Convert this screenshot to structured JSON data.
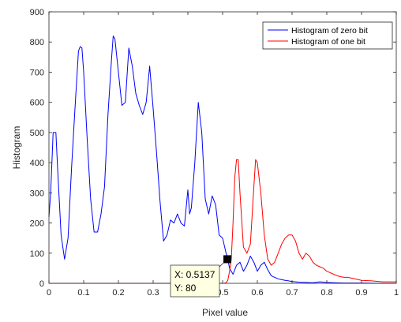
{
  "chart_data": {
    "type": "line",
    "xlabel": "Pixel value",
    "ylabel": "Histogram",
    "xlim": [
      0,
      1
    ],
    "ylim": [
      0,
      900
    ],
    "xticks": [
      0,
      0.1,
      0.2,
      0.3,
      0.4,
      0.5,
      0.6,
      0.7,
      0.8,
      0.9,
      1
    ],
    "xtick_labels": [
      "0",
      "0.1",
      "0.2",
      "0.3",
      "0.4",
      "0.5",
      "0.6",
      "0.7",
      "0.8",
      "0.9",
      "1"
    ],
    "yticks": [
      0,
      100,
      200,
      300,
      400,
      500,
      600,
      700,
      800,
      900
    ],
    "ytick_labels": [
      "0",
      "100",
      "200",
      "300",
      "400",
      "500",
      "600",
      "700",
      "800",
      "900"
    ],
    "grid": false,
    "legend_position": "top-right",
    "series": [
      {
        "name": "Histogram of zero bit",
        "color": "#0000ff",
        "x": [
          0,
          0.005,
          0.012,
          0.02,
          0.025,
          0.035,
          0.045,
          0.055,
          0.065,
          0.075,
          0.085,
          0.09,
          0.095,
          0.1,
          0.11,
          0.12,
          0.13,
          0.14,
          0.15,
          0.16,
          0.17,
          0.18,
          0.185,
          0.19,
          0.2,
          0.21,
          0.22,
          0.23,
          0.24,
          0.25,
          0.26,
          0.27,
          0.28,
          0.29,
          0.3,
          0.31,
          0.32,
          0.33,
          0.34,
          0.35,
          0.36,
          0.37,
          0.38,
          0.39,
          0.4,
          0.405,
          0.41,
          0.42,
          0.43,
          0.44,
          0.45,
          0.46,
          0.47,
          0.48,
          0.49,
          0.5,
          0.51,
          0.515,
          0.52,
          0.53,
          0.54,
          0.55,
          0.56,
          0.57,
          0.58,
          0.59,
          0.6,
          0.61,
          0.62,
          0.63,
          0.64,
          0.65,
          0.66,
          0.67,
          0.68,
          0.69,
          0.7,
          0.72,
          0.74,
          0.76,
          0.78,
          0.8,
          0.82,
          0.85,
          0.9,
          0.95,
          1.0
        ],
        "y": [
          220,
          300,
          500,
          500,
          380,
          160,
          80,
          150,
          380,
          580,
          770,
          785,
          780,
          700,
          480,
          280,
          170,
          170,
          230,
          320,
          560,
          740,
          820,
          810,
          700,
          590,
          600,
          780,
          720,
          630,
          590,
          560,
          600,
          720,
          580,
          430,
          270,
          140,
          160,
          210,
          200,
          230,
          200,
          190,
          310,
          230,
          250,
          400,
          600,
          500,
          280,
          230,
          290,
          260,
          160,
          150,
          100,
          80,
          50,
          30,
          60,
          70,
          40,
          60,
          90,
          70,
          40,
          60,
          70,
          45,
          25,
          20,
          15,
          12,
          10,
          8,
          6,
          4,
          3,
          2,
          5,
          3,
          2,
          1,
          1,
          0,
          0
        ]
      },
      {
        "name": "Histogram of one bit",
        "color": "#ff0000",
        "x": [
          0,
          0.4,
          0.48,
          0.49,
          0.5,
          0.505,
          0.51,
          0.515,
          0.52,
          0.525,
          0.53,
          0.535,
          0.54,
          0.545,
          0.55,
          0.56,
          0.57,
          0.58,
          0.59,
          0.595,
          0.6,
          0.61,
          0.62,
          0.63,
          0.64,
          0.65,
          0.66,
          0.67,
          0.68,
          0.69,
          0.7,
          0.71,
          0.72,
          0.73,
          0.74,
          0.75,
          0.76,
          0.77,
          0.78,
          0.79,
          0.8,
          0.81,
          0.82,
          0.83,
          0.84,
          0.85,
          0.86,
          0.88,
          0.9,
          0.93,
          0.96,
          1.0
        ],
        "y": [
          0,
          0,
          0,
          0,
          0,
          0,
          2,
          10,
          40,
          80,
          200,
          350,
          410,
          410,
          300,
          120,
          100,
          130,
          320,
          410,
          400,
          300,
          160,
          80,
          60,
          70,
          100,
          130,
          150,
          160,
          160,
          140,
          100,
          80,
          100,
          90,
          70,
          60,
          55,
          50,
          40,
          35,
          30,
          25,
          22,
          20,
          20,
          15,
          10,
          8,
          5,
          5
        ]
      }
    ],
    "datatip": {
      "x_value": 0.5137,
      "y_value": 80,
      "x_text": "X: 0.5137",
      "y_text": "Y: 80"
    }
  }
}
